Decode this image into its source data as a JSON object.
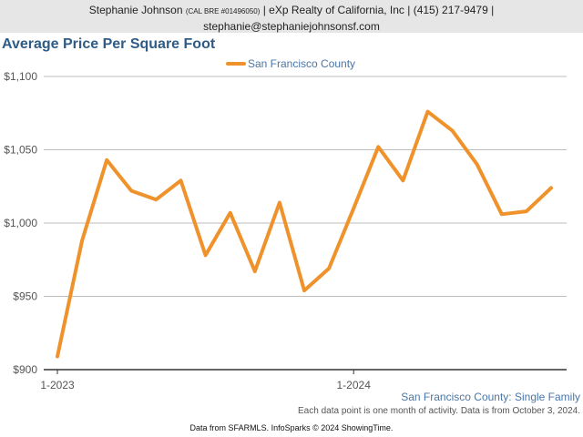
{
  "header": {
    "name": "Stephanie Johnson",
    "license": "(CAL BRE #01496050)",
    "agency": "| eXp Realty of California, Inc | (415) 217-9479 |",
    "email": "stephanie@stephaniejohnsonsf.com"
  },
  "chart_data": {
    "type": "line",
    "title": "Average Price Per Square Foot",
    "xlabel": "",
    "ylabel": "",
    "ylim": [
      900,
      1100
    ],
    "yticks": [
      900,
      950,
      1000,
      1050,
      1100
    ],
    "ytick_labels": [
      "$900",
      "$950",
      "$1,000",
      "$1,050",
      "$1,100"
    ],
    "xtick_labels": [
      "1-2023",
      "1-2024"
    ],
    "grid": true,
    "legend": "top-center",
    "x": [
      "2023-01",
      "2023-02",
      "2023-03",
      "2023-04",
      "2023-05",
      "2023-06",
      "2023-07",
      "2023-08",
      "2023-09",
      "2023-10",
      "2023-11",
      "2023-12",
      "2024-01",
      "2024-02",
      "2024-03",
      "2024-04",
      "2024-05",
      "2024-06",
      "2024-07",
      "2024-08",
      "2024-09"
    ],
    "series": [
      {
        "name": "San Francisco County",
        "color": "#f0922b",
        "values": [
          909,
          988,
          1043,
          1022,
          1016,
          1029,
          978,
          1007,
          967,
          1014,
          954,
          969,
          1010,
          1052,
          1029,
          1076,
          1063,
          1040,
          1006,
          1008,
          1024
        ]
      }
    ]
  },
  "footer": {
    "subtitle": "San Francisco County: Single Family",
    "note": "Each data point is one month of activity. Data is from October 3, 2024.",
    "source": "Data from SFARMLS. InfoSparks © 2024 ShowingTime."
  }
}
